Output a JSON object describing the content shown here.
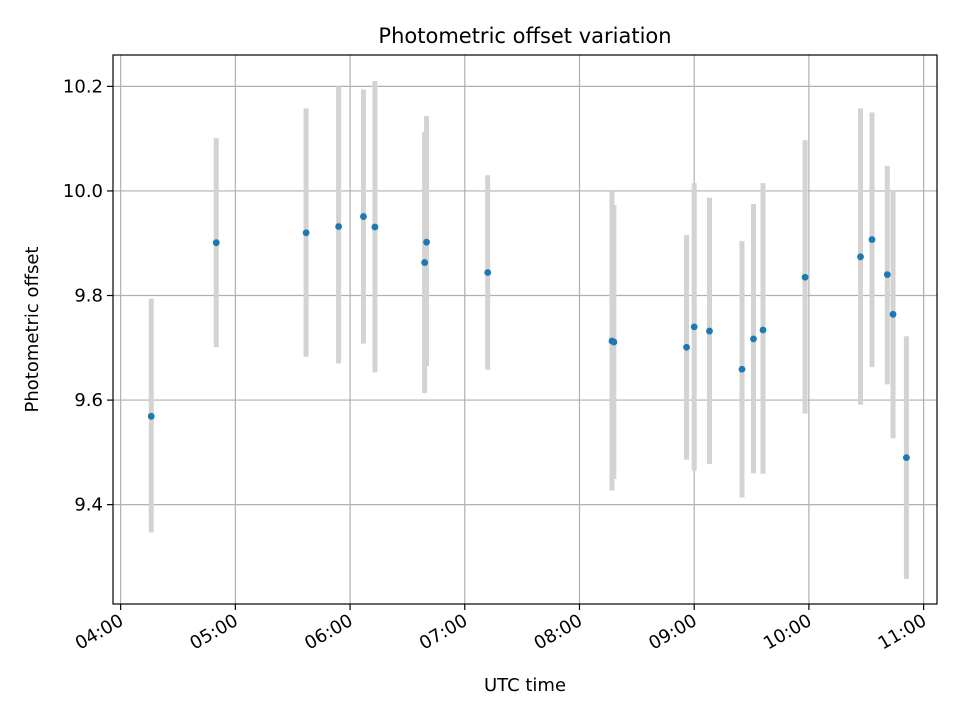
{
  "chart_data": {
    "type": "scatter",
    "title": "Photometric offset variation",
    "xlabel": "UTC time",
    "ylabel": "Photometric offset",
    "xlim": [
      "03:56",
      "11:07"
    ],
    "ylim": [
      9.21,
      10.26
    ],
    "x_ticks": [
      "04:00",
      "05:00",
      "06:00",
      "07:00",
      "08:00",
      "09:00",
      "10:00",
      "11:00"
    ],
    "y_ticks": [
      9.4,
      9.6,
      9.8,
      10.0,
      10.2
    ],
    "y_tick_labels": [
      "9.4",
      "9.6",
      "9.8",
      "10.0",
      "10.2"
    ],
    "grid": true,
    "colors": {
      "points": "#1f77b4",
      "error_bars": "#d3d3d3",
      "grid": "#b0b0b0"
    },
    "points": [
      {
        "x": "04:16",
        "y": 9.569,
        "ylow": 9.347,
        "yhigh": 9.794
      },
      {
        "x": "04:50",
        "y": 9.901,
        "ylow": 9.701,
        "yhigh": 10.101
      },
      {
        "x": "05:37",
        "y": 9.92,
        "ylow": 9.683,
        "yhigh": 10.158
      },
      {
        "x": "05:54",
        "y": 9.932,
        "ylow": 9.67,
        "yhigh": 10.2
      },
      {
        "x": "06:07",
        "y": 9.951,
        "ylow": 9.708,
        "yhigh": 10.194
      },
      {
        "x": "06:13",
        "y": 9.931,
        "ylow": 9.653,
        "yhigh": 10.21
      },
      {
        "x": "06:39",
        "y": 9.863,
        "ylow": 9.613,
        "yhigh": 10.113
      },
      {
        "x": "06:40",
        "y": 9.902,
        "ylow": 9.665,
        "yhigh": 10.143
      },
      {
        "x": "07:12",
        "y": 9.844,
        "ylow": 9.658,
        "yhigh": 10.03
      },
      {
        "x": "08:17",
        "y": 9.713,
        "ylow": 9.427,
        "yhigh": 10.002
      },
      {
        "x": "08:18",
        "y": 9.711,
        "ylow": 9.449,
        "yhigh": 9.973
      },
      {
        "x": "08:56",
        "y": 9.701,
        "ylow": 9.486,
        "yhigh": 9.916
      },
      {
        "x": "09:00",
        "y": 9.74,
        "ylow": 9.465,
        "yhigh": 10.015
      },
      {
        "x": "09:08",
        "y": 9.732,
        "ylow": 9.478,
        "yhigh": 9.987
      },
      {
        "x": "09:25",
        "y": 9.659,
        "ylow": 9.414,
        "yhigh": 9.904
      },
      {
        "x": "09:31",
        "y": 9.717,
        "ylow": 9.46,
        "yhigh": 9.975
      },
      {
        "x": "09:36",
        "y": 9.734,
        "ylow": 9.459,
        "yhigh": 10.015
      },
      {
        "x": "09:58",
        "y": 9.835,
        "ylow": 9.574,
        "yhigh": 10.097
      },
      {
        "x": "10:27",
        "y": 9.874,
        "ylow": 9.591,
        "yhigh": 10.158
      },
      {
        "x": "10:33",
        "y": 9.907,
        "ylow": 9.663,
        "yhigh": 10.15
      },
      {
        "x": "10:41",
        "y": 9.84,
        "ylow": 9.63,
        "yhigh": 10.048
      },
      {
        "x": "10:44",
        "y": 9.764,
        "ylow": 9.527,
        "yhigh": 10.0
      },
      {
        "x": "10:51",
        "y": 9.49,
        "ylow": 9.258,
        "yhigh": 9.722
      }
    ]
  }
}
